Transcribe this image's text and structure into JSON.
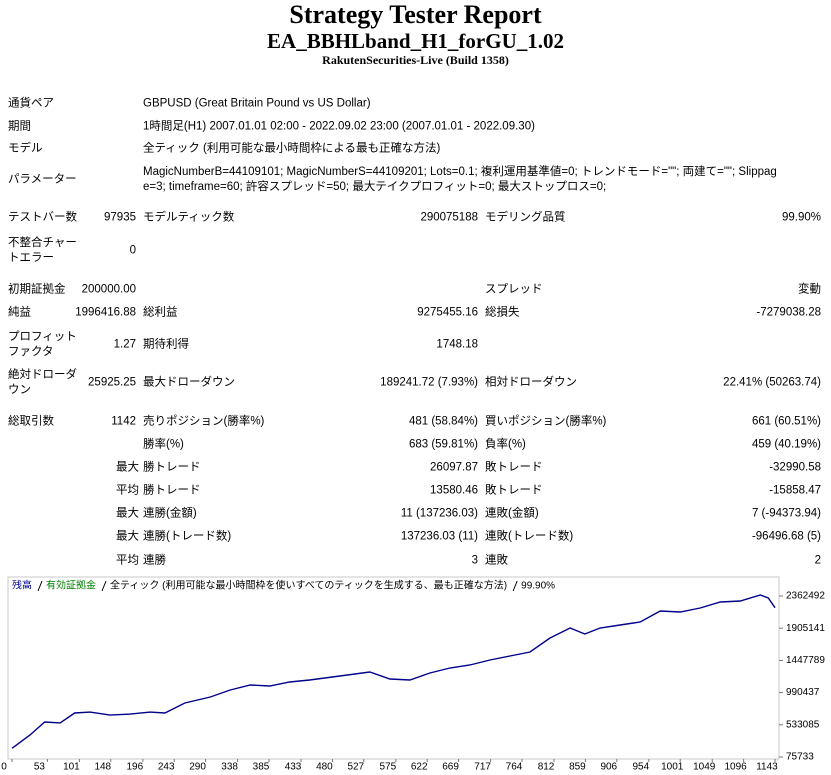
{
  "header": {
    "title": "Strategy Tester Report",
    "subtitle": "EA_BBHLband_H1_forGU_1.02",
    "server": "RakutenSecurities-Live (Build 1358)"
  },
  "info": [
    {
      "label": "通貨ペア",
      "value": "GBPUSD (Great Britain Pound vs US Dollar)"
    },
    {
      "label": "期間",
      "value": "1時間足(H1) 2007.01.01 02:00 - 2022.09.02 23:00 (2007.01.01 - 2022.09.30)"
    },
    {
      "label": "モデル",
      "value": "全ティック (利用可能な最小時間枠による最も正確な方法)"
    },
    {
      "label": "パラメーター",
      "value": "MagicNumberB=44109101; MagicNumberS=44109201; Lots=0.1; 複利運用基準値=0; トレンドモード=\"\"; 両建て=\"\"; Slippage=3; timeframe=60; 許容スプレッド=50; 最大テイクプロフィット=0; 最大ストップロス=0;"
    }
  ],
  "stats": [
    {
      "c1": {
        "label": "テストバー数",
        "value": "97935"
      },
      "c2": {
        "label": "モデルティック数",
        "value": "290075188"
      },
      "c3": {
        "label": "モデリング品質",
        "value": "99.90%"
      }
    },
    {
      "c1": {
        "label": "不整合チャートエラー",
        "value": "0"
      }
    },
    {
      "c1": {
        "label": "初期証拠金",
        "value": "200000.00"
      },
      "c3": {
        "label": "スプレッド",
        "value": "変動"
      }
    },
    {
      "c1": {
        "label": "純益",
        "value": "1996416.88"
      },
      "c2": {
        "label": "総利益",
        "value": "9275455.16"
      },
      "c3": {
        "label": "総損失",
        "value": "-7279038.28"
      }
    },
    {
      "c1": {
        "label": "プロフィットファクタ",
        "value": "1.27"
      },
      "c2": {
        "label": "期待利得",
        "value": "1748.18"
      }
    },
    {
      "c1": {
        "label": "絶対ドローダウン",
        "value": "25925.25"
      },
      "c2": {
        "label": "最大ドローダウン",
        "value": "189241.72 (7.93%)"
      },
      "c3": {
        "label": "相対ドローダウン",
        "value": "22.41% (50263.74)"
      }
    },
    {
      "c1": {
        "label": "総取引数",
        "value": "1142"
      },
      "c2": {
        "label": "売りポジション(勝率%)",
        "value": "481 (58.84%)"
      },
      "c3": {
        "label": "買いポジション(勝率%)",
        "value": "661 (60.51%)"
      }
    },
    {
      "c2": {
        "label": "勝率(%)",
        "value": "683 (59.81%)"
      },
      "c3": {
        "label": "負率(%)",
        "value": "459 (40.19%)"
      }
    },
    {
      "prefix": "最大",
      "c2": {
        "label": "勝トレード",
        "value": "26097.87"
      },
      "c3": {
        "label": "敗トレード",
        "value": "-32990.58"
      }
    },
    {
      "prefix": "平均",
      "c2": {
        "label": "勝トレード",
        "value": "13580.46"
      },
      "c3": {
        "label": "敗トレード",
        "value": "-15858.47"
      }
    },
    {
      "prefix": "最大",
      "c2": {
        "label": "連勝(金額)",
        "value": "11 (137236.03)"
      },
      "c3": {
        "label": "連敗(金額)",
        "value": "7 (-94373.94)"
      }
    },
    {
      "prefix": "最大",
      "c2": {
        "label": "連勝(トレード数)",
        "value": "137236.03 (11)"
      },
      "c3": {
        "label": "連敗(トレード数)",
        "value": "-96496.68 (5)"
      }
    },
    {
      "prefix": "平均",
      "c2": {
        "label": "連勝",
        "value": "3"
      },
      "c3": {
        "label": "連敗",
        "value": "2"
      }
    }
  ],
  "chart_data": {
    "type": "line",
    "note": "全ティック (利用可能な最小時間枠を使いすべてのティックを生成する、最も正確な方法)",
    "quality": "99.90%",
    "x": [
      0,
      27,
      49,
      72,
      94,
      117,
      147,
      177,
      207,
      229,
      259,
      297,
      327,
      357,
      386,
      416,
      446,
      491,
      536,
      566,
      596,
      626,
      656,
      686,
      716,
      746,
      776,
      806,
      836,
      858,
      881,
      911,
      941,
      971,
      1001,
      1031,
      1061,
      1091,
      1121,
      1133,
      1143
    ],
    "series": [
      {
        "name": "残高",
        "color": "#00008b",
        "values": [
          200000,
          388000,
          573000,
          560000,
          700000,
          714000,
          671000,
          685000,
          714000,
          700000,
          843000,
          928000,
          1027000,
          1098000,
          1084000,
          1141000,
          1170000,
          1226000,
          1283000,
          1184000,
          1170000,
          1269000,
          1340000,
          1382000,
          1453000,
          1510000,
          1567000,
          1766000,
          1908000,
          1823000,
          1908000,
          1950000,
          1993000,
          2149000,
          2135000,
          2192000,
          2277000,
          2291000,
          2376000,
          2334000,
          2196417
        ]
      },
      {
        "name": "有効証拠金",
        "color": "#008000"
      }
    ],
    "xlim": [
      0,
      1143
    ],
    "ylim": [
      75733,
      2362492
    ],
    "xticks": [
      0,
      53,
      101,
      148,
      196,
      243,
      290,
      338,
      385,
      433,
      480,
      527,
      575,
      622,
      669,
      717,
      764,
      812,
      859,
      906,
      954,
      1001,
      1049,
      1096,
      1143
    ],
    "yticks": [
      75733,
      533085,
      990437,
      1447789,
      1905141,
      2362492
    ]
  }
}
